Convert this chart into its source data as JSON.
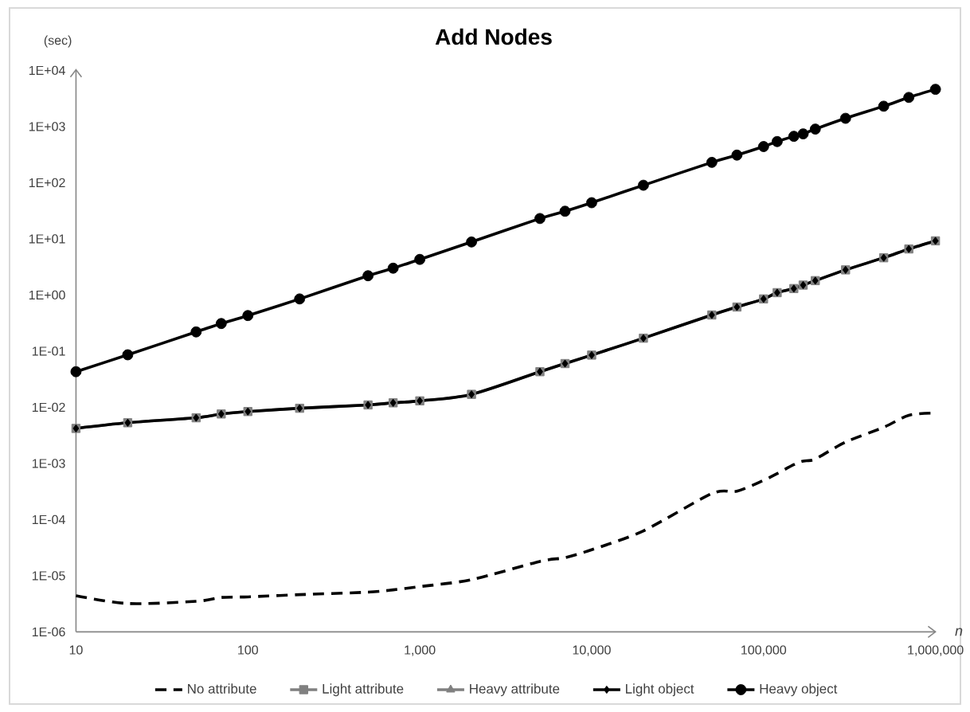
{
  "chart_data": {
    "type": "line",
    "title": "Add Nodes",
    "xlabel": "n",
    "ylabel": "(sec)",
    "log": "xy",
    "legend": "bottom",
    "x": [
      10,
      20,
      50,
      70,
      100,
      200,
      500,
      700,
      1000,
      2000,
      5000,
      7000,
      10000,
      20000,
      50000,
      70000,
      100000,
      120000,
      150000,
      170000,
      200000,
      300000,
      500000,
      700000,
      1000000
    ],
    "xlim": [
      10,
      1000000
    ],
    "ylim": [
      1e-06,
      10000
    ],
    "xticks": [
      10,
      100,
      {
        "value": 1000,
        "label": "1,000"
      },
      {
        "value": 10000,
        "label": "10,000"
      },
      {
        "value": 100000,
        "label": "100,000"
      },
      {
        "value": 1000000,
        "label": "1,000,000"
      }
    ],
    "yticks": [
      {
        "value": 1e-06,
        "label": "1E-06"
      },
      {
        "value": 1e-05,
        "label": "1E-05"
      },
      {
        "value": 0.0001,
        "label": "1E-04"
      },
      {
        "value": 0.001,
        "label": "1E-03"
      },
      {
        "value": 0.01,
        "label": "1E-02"
      },
      {
        "value": 0.1,
        "label": "1E-01"
      },
      {
        "value": 1,
        "label": "1E+00"
      },
      {
        "value": 10,
        "label": "1E+01"
      },
      {
        "value": 100,
        "label": "1E+02"
      },
      {
        "value": 1000,
        "label": "1E+03"
      },
      {
        "value": 10000,
        "label": "1E+04"
      }
    ],
    "series": [
      {
        "name": "No attribute",
        "color": "#000000",
        "marker": "none",
        "line_style": "dashed",
        "values": [
          4.4e-06,
          3.2e-06,
          3.5e-06,
          4.1e-06,
          4.2e-06,
          4.6e-06,
          5.1e-06,
          5.6e-06,
          6.4e-06,
          8.5e-06,
          1.8e-05,
          2.1e-05,
          2.9e-05,
          6.3e-05,
          0.00029,
          0.00032,
          0.0005,
          0.00066,
          0.00095,
          0.0011,
          0.0012,
          0.0024,
          0.0044,
          0.0072,
          0.0079
        ]
      },
      {
        "name": "Light attribute",
        "color": "#808080",
        "marker": "square",
        "line_style": "solid",
        "values": [
          0.0042,
          0.0053,
          0.0065,
          0.0076,
          0.0084,
          0.0096,
          0.011,
          0.012,
          0.013,
          0.017,
          0.043,
          0.06,
          0.085,
          0.17,
          0.44,
          0.61,
          0.85,
          1.1,
          1.3,
          1.5,
          1.8,
          2.8,
          4.6,
          6.6,
          9.2
        ]
      },
      {
        "name": "Heavy attribute",
        "color": "#808080",
        "marker": "triangle",
        "line_style": "solid",
        "values": [
          null,
          null,
          null,
          null,
          null,
          null,
          null,
          null,
          null,
          null,
          null,
          null,
          null,
          null,
          null,
          null,
          null,
          null,
          null,
          null,
          null,
          null,
          null,
          null,
          null
        ]
      },
      {
        "name": "Light object",
        "color": "#000000",
        "marker": "diamond",
        "line_style": "solid",
        "values": [
          0.0042,
          0.0053,
          0.0065,
          0.0076,
          0.0084,
          0.0096,
          0.011,
          0.012,
          0.013,
          0.017,
          0.043,
          0.06,
          0.085,
          0.17,
          0.44,
          0.61,
          0.85,
          1.1,
          1.3,
          1.5,
          1.8,
          2.8,
          4.6,
          6.6,
          9.2
        ]
      },
      {
        "name": "Heavy object",
        "color": "#000000",
        "marker": "circle",
        "line_style": "solid",
        "values": [
          0.043,
          0.086,
          0.22,
          0.31,
          0.43,
          0.85,
          2.2,
          3.0,
          4.3,
          8.8,
          23,
          31,
          44,
          90,
          230,
          310,
          440,
          540,
          670,
          740,
          900,
          1400,
          2300,
          3300,
          4600
        ]
      }
    ]
  }
}
